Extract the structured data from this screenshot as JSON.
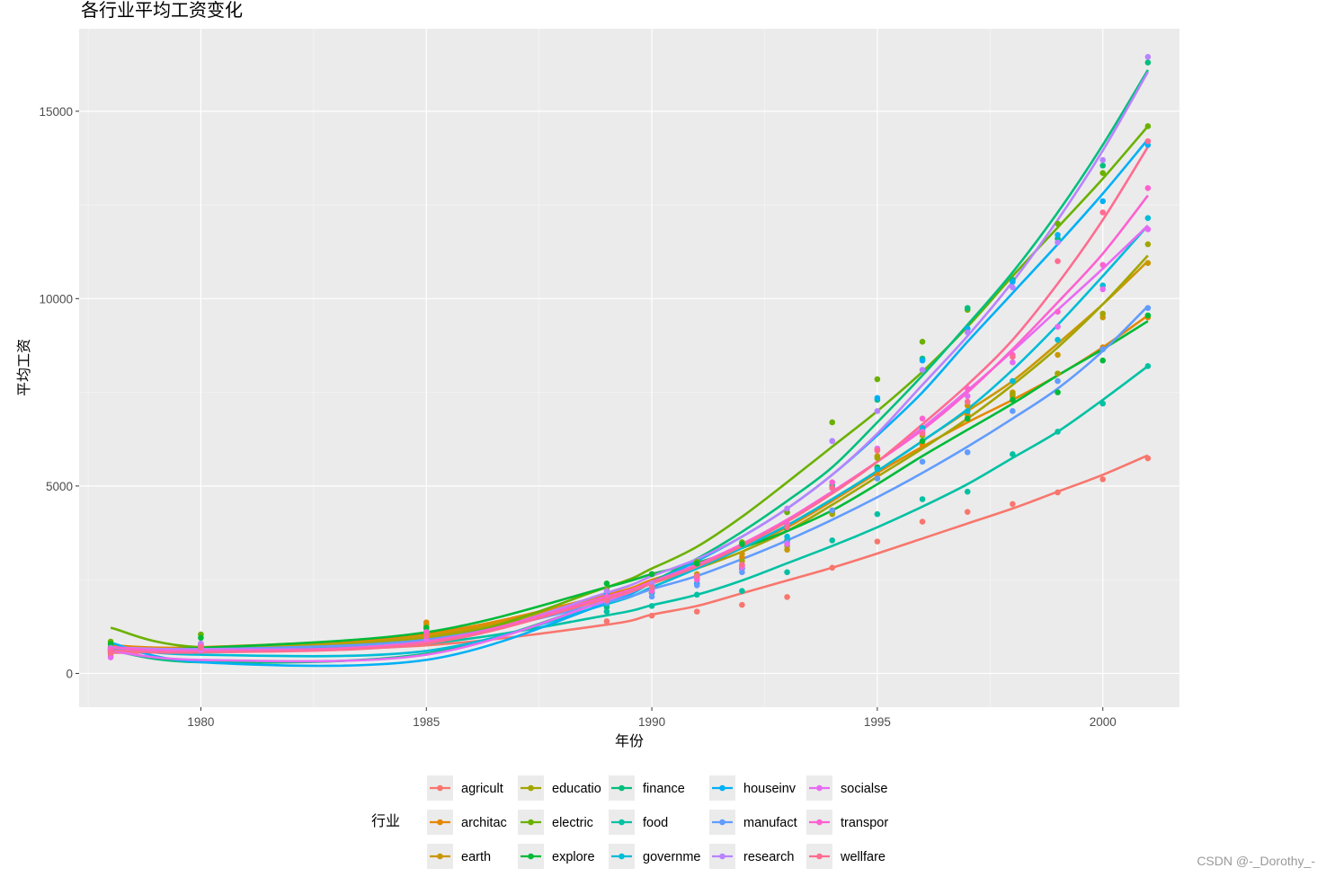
{
  "watermark": "CSDN @-_Dorothy_-",
  "chart_data": {
    "type": "scatter",
    "title": "各行业平均工资变化",
    "xlabel": "年份",
    "ylabel": "平均工资",
    "xlim": [
      1977.3,
      2001.7
    ],
    "ylim": [
      -900,
      17200
    ],
    "x_ticks": [
      1980,
      1985,
      1990,
      1995,
      2000
    ],
    "x_tick_labels": [
      "1980",
      "1985",
      "1990",
      "1995",
      "2000"
    ],
    "y_ticks": [
      0,
      5000,
      10000,
      15000
    ],
    "y_tick_labels": [
      "0",
      "5000",
      "10000",
      "15000"
    ],
    "grid": true,
    "smoother": "loess",
    "legend_title": "行业",
    "legend_position": "bottom",
    "years": [
      1978,
      1980,
      1985,
      1989,
      1990,
      1991,
      1992,
      1993,
      1994,
      1995,
      1996,
      1997,
      1998,
      1999,
      2000,
      2001
    ],
    "series": [
      {
        "name": "agricult",
        "color": "#F8766D",
        "values": [
          470,
          610,
          880,
          1390,
          1540,
          1650,
          1830,
          2040,
          2820,
          3520,
          4050,
          4310,
          4520,
          4830,
          5180,
          5740
        ],
        "trend": [
          550,
          580,
          750,
          1300,
          1570,
          1800,
          2140,
          2480,
          2820,
          3200,
          3600,
          4000,
          4400,
          4850,
          5300,
          5820
        ]
      },
      {
        "name": "architac",
        "color": "#E58700",
        "values": [
          720,
          770,
          1360,
          2000,
          2200,
          2600,
          3100,
          3550,
          4300,
          5300,
          6100,
          6900,
          7400,
          8000,
          8700,
          9500
        ],
        "trend": [
          750,
          700,
          1060,
          2100,
          2500,
          2850,
          3350,
          3900,
          4600,
          5350,
          6050,
          6700,
          7300,
          7950,
          8700,
          9550
        ]
      },
      {
        "name": "earth",
        "color": "#C99800",
        "values": [
          650,
          740,
          1290,
          2010,
          2300,
          2650,
          3200,
          3300,
          4350,
          5800,
          6500,
          7150,
          7500,
          8500,
          9500,
          10950
        ],
        "trend": [
          680,
          650,
          1000,
          2050,
          2450,
          2850,
          3350,
          3950,
          4650,
          5400,
          6200,
          7000,
          7800,
          8800,
          9850,
          11000
        ]
      },
      {
        "name": "educatio",
        "color": "#A3A500",
        "values": [
          540,
          680,
          1050,
          2000,
          2150,
          2600,
          3000,
          3400,
          4250,
          5750,
          6350,
          6800,
          7450,
          8000,
          9600,
          11450
        ],
        "trend": [
          640,
          620,
          950,
          1980,
          2400,
          2800,
          3250,
          3800,
          4500,
          5250,
          6000,
          6800,
          7700,
          8700,
          9850,
          11150
        ]
      },
      {
        "name": "electric",
        "color": "#6BB100",
        "values": [
          850,
          1040,
          1200,
          2250,
          2650,
          2980,
          3500,
          4300,
          6700,
          7850,
          8850,
          9700,
          10500,
          12000,
          13350,
          14600
        ],
        "trend": [
          1220,
          700,
          840,
          2300,
          2800,
          3380,
          4180,
          5100,
          6050,
          7000,
          8050,
          9250,
          10600,
          11900,
          13200,
          14600
        ]
      },
      {
        "name": "explore",
        "color": "#00BA38",
        "values": [
          790,
          950,
          1220,
          2400,
          2650,
          2930,
          3450,
          3850,
          5000,
          5500,
          6200,
          6800,
          7300,
          7500,
          8350,
          9550
        ],
        "trend": [
          650,
          680,
          1100,
          2300,
          2650,
          2950,
          3350,
          3800,
          4350,
          5050,
          5800,
          6500,
          7200,
          7950,
          8650,
          9400
        ]
      },
      {
        "name": "finance",
        "color": "#00BF7D",
        "values": [
          610,
          690,
          1070,
          1770,
          2150,
          2600,
          2800,
          3550,
          5000,
          7300,
          8400,
          9750,
          10500,
          11600,
          13550,
          16300
        ],
        "trend": [
          620,
          300,
          530,
          1950,
          2450,
          3060,
          3780,
          4600,
          5500,
          6700,
          7950,
          9300,
          10700,
          12300,
          14100,
          16100
        ]
      },
      {
        "name": "food",
        "color": "#00C1A3",
        "values": [
          580,
          640,
          930,
          1650,
          1800,
          2100,
          2200,
          2700,
          3550,
          4250,
          4650,
          4850,
          5850,
          6450,
          7200,
          8200
        ],
        "trend": [
          690,
          630,
          800,
          1550,
          1820,
          2100,
          2480,
          2940,
          3400,
          3900,
          4450,
          5050,
          5750,
          6450,
          7300,
          8200
        ]
      },
      {
        "name": "governme",
        "color": "#00BCD8",
        "values": [
          680,
          760,
          1100,
          1860,
          2150,
          2550,
          2800,
          3650,
          4950,
          5450,
          6550,
          7000,
          7800,
          8900,
          10350,
          12150
        ],
        "trend": [
          700,
          500,
          600,
          1850,
          2300,
          2800,
          3350,
          3950,
          4650,
          5400,
          6200,
          7050,
          8100,
          9300,
          10600,
          11950
        ]
      },
      {
        "name": "houseinv",
        "color": "#00B0F6",
        "values": [
          630,
          710,
          1100,
          2100,
          2200,
          2400,
          2800,
          3950,
          6200,
          7350,
          8350,
          9200,
          10450,
          11700,
          12600,
          14100
        ],
        "trend": [
          820,
          300,
          360,
          1880,
          2420,
          3000,
          3650,
          4400,
          5300,
          6350,
          7500,
          8850,
          10150,
          11450,
          12800,
          14250
        ]
      },
      {
        "name": "manufact",
        "color": "#619CFF",
        "values": [
          590,
          700,
          1000,
          1890,
          2050,
          2350,
          2700,
          3500,
          4350,
          5200,
          5650,
          5900,
          7000,
          7800,
          8650,
          9750
        ],
        "trend": [
          620,
          640,
          900,
          1900,
          2250,
          2600,
          3050,
          3550,
          4100,
          4700,
          5350,
          6050,
          6800,
          7600,
          8600,
          9800
        ]
      },
      {
        "name": "research",
        "color": "#B983FF",
        "values": [
          680,
          800,
          1100,
          2200,
          2400,
          2550,
          2850,
          4400,
          6200,
          7000,
          8100,
          9100,
          10300,
          11500,
          13700,
          16450
        ],
        "trend": [
          700,
          650,
          800,
          2150,
          2600,
          3050,
          3650,
          4400,
          5300,
          6400,
          7700,
          9000,
          10450,
          12100,
          13950,
          16050
        ]
      },
      {
        "name": "socialse",
        "color": "#E76BF3",
        "values": [
          430,
          620,
          900,
          1950,
          2300,
          2580,
          2830,
          3450,
          4950,
          6000,
          6450,
          7400,
          8300,
          9250,
          10250,
          11850
        ],
        "trend": [
          600,
          360,
          500,
          1950,
          2420,
          2900,
          3450,
          4100,
          4850,
          5650,
          6550,
          7550,
          8600,
          9700,
          10800,
          11950
        ]
      },
      {
        "name": "transpor",
        "color": "#FD61D1",
        "values": [
          650,
          730,
          1100,
          2050,
          2200,
          2500,
          2900,
          4000,
          5100,
          5950,
          6800,
          7600,
          8500,
          9650,
          10900,
          12950
        ],
        "trend": [
          700,
          600,
          850,
          2050,
          2450,
          2900,
          3450,
          4100,
          4850,
          5650,
          6500,
          7500,
          8650,
          9900,
          11200,
          12750
        ]
      },
      {
        "name": "wellfare",
        "color": "#FF6C91",
        "values": [
          560,
          690,
          1000,
          1950,
          2300,
          2600,
          2900,
          3900,
          4950,
          5950,
          6400,
          7250,
          8450,
          11000,
          12300,
          14200
        ],
        "trend": [
          620,
          560,
          800,
          2000,
          2400,
          2850,
          3400,
          4050,
          4800,
          5650,
          6650,
          7700,
          8900,
          10400,
          12100,
          14050
        ]
      }
    ]
  }
}
